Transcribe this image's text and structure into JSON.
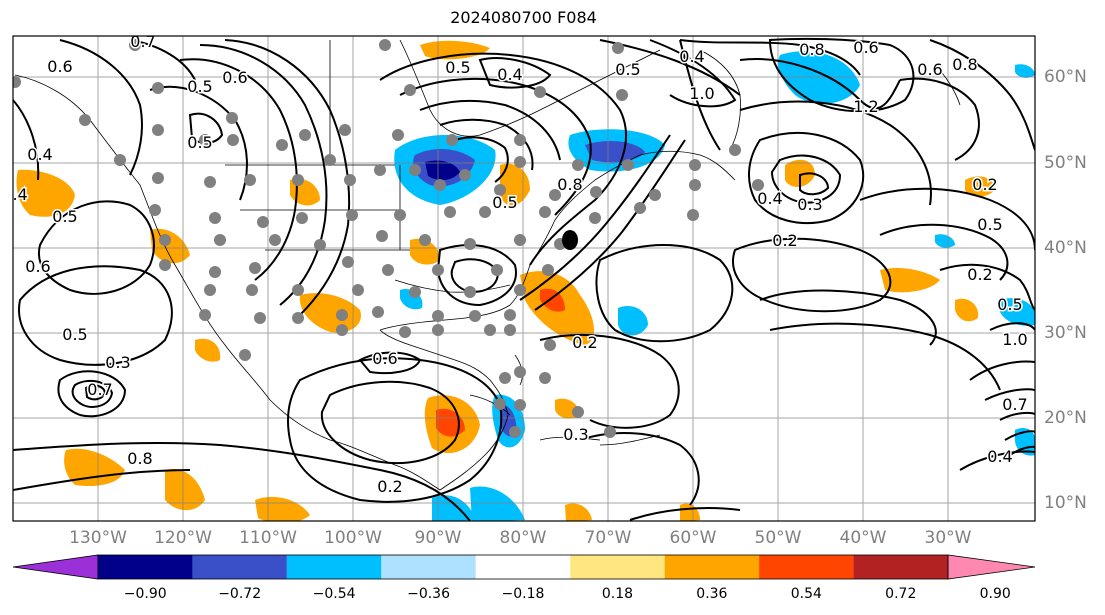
{
  "title": "2024080700 F084",
  "lon_labels": [
    "130°W",
    "120°W",
    "110°W",
    "100°W",
    "90°W",
    "80°W",
    "70°W",
    "60°W",
    "50°W",
    "40°W",
    "30°W"
  ],
  "lat_labels": [
    "60°N",
    "50°N",
    "40°N",
    "30°N",
    "20°N",
    "10°N"
  ],
  "colorbar": {
    "ticks": [
      "−0.90",
      "−0.72",
      "−0.54",
      "−0.36",
      "−0.18",
      "0.18",
      "0.36",
      "0.54",
      "0.72",
      "0.90"
    ],
    "colors": [
      "#9b30d9",
      "#00008b",
      "#3a50c8",
      "#00bfff",
      "#aee0ff",
      "#ffffff",
      "#ffe680",
      "#ffa500",
      "#ff4500",
      "#b22222",
      "#ff88b0"
    ]
  },
  "contour_labels": [
    "0.7",
    "0.6",
    "0.5",
    "0.4",
    "0.5",
    "0.4",
    "1.0",
    "0.8",
    "0.6",
    "1.2",
    "0.6",
    "0.8",
    "0.5",
    "0.5",
    "0.4",
    "0.5",
    "0.6",
    "0.4",
    "0.5",
    "0.3",
    "0.7",
    "0.8",
    "0.6",
    "0.2",
    "0.3",
    "0.2",
    "0.4",
    "0.3",
    "0.2",
    "0.2",
    "0.5",
    "0.2",
    "0.5",
    "1.0",
    "0.7",
    "0.4",
    "0.8",
    "0.5",
    "0.6"
  ],
  "colors": {
    "axis": "#000000",
    "grid": "#808080",
    "lines": "#000000",
    "stations": "#808080"
  }
}
